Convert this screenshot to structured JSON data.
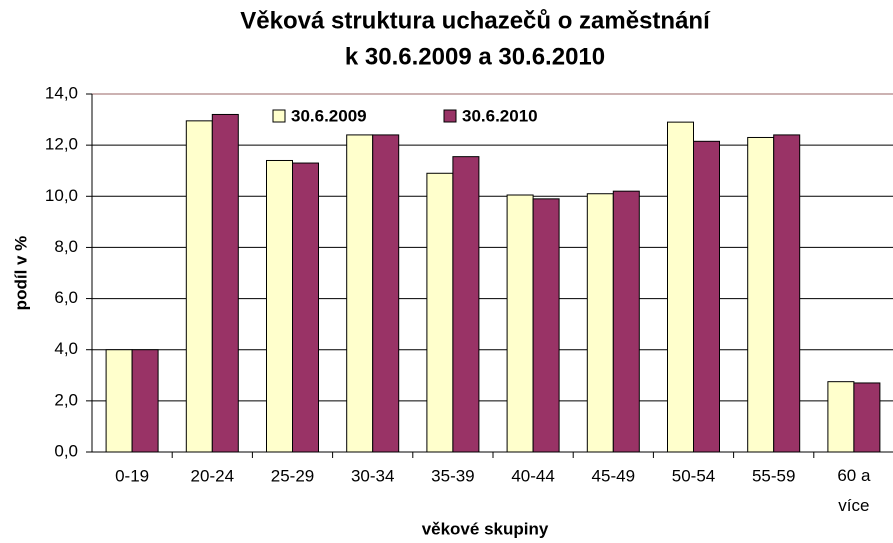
{
  "chart_data": {
    "type": "bar",
    "title": [
      "Věková struktura uchazečů o zaměstnání",
      "k 30.6.2009 a 30.6.2010"
    ],
    "xlabel": "věkové skupiny",
    "ylabel": "podíl v %",
    "categories": [
      "0-19",
      "20-24",
      "25-29",
      "30-34",
      "35-39",
      "40-44",
      "45-49",
      "50-54",
      "55-59",
      "60 a více"
    ],
    "series": [
      {
        "name": "30.6.2009",
        "color": "#ffffcc",
        "values": [
          4.0,
          12.95,
          11.4,
          12.4,
          10.9,
          10.05,
          10.1,
          12.9,
          12.3,
          2.75
        ]
      },
      {
        "name": "30.6.2010",
        "color": "#993366",
        "values": [
          4.0,
          13.2,
          11.3,
          12.4,
          11.55,
          9.9,
          10.2,
          12.15,
          12.4,
          2.7
        ]
      }
    ],
    "ylim": [
      0,
      14
    ],
    "yticks": [
      {
        "value": 0,
        "label": "0,0"
      },
      {
        "value": 2,
        "label": "2,0"
      },
      {
        "value": 4,
        "label": "4,0"
      },
      {
        "value": 6,
        "label": "6,0"
      },
      {
        "value": 8,
        "label": "8,0"
      },
      {
        "value": 10,
        "label": "10,0"
      },
      {
        "value": 12,
        "label": "12,0"
      },
      {
        "value": 14,
        "label": "14,0"
      }
    ],
    "grid": true,
    "legend": "top"
  }
}
